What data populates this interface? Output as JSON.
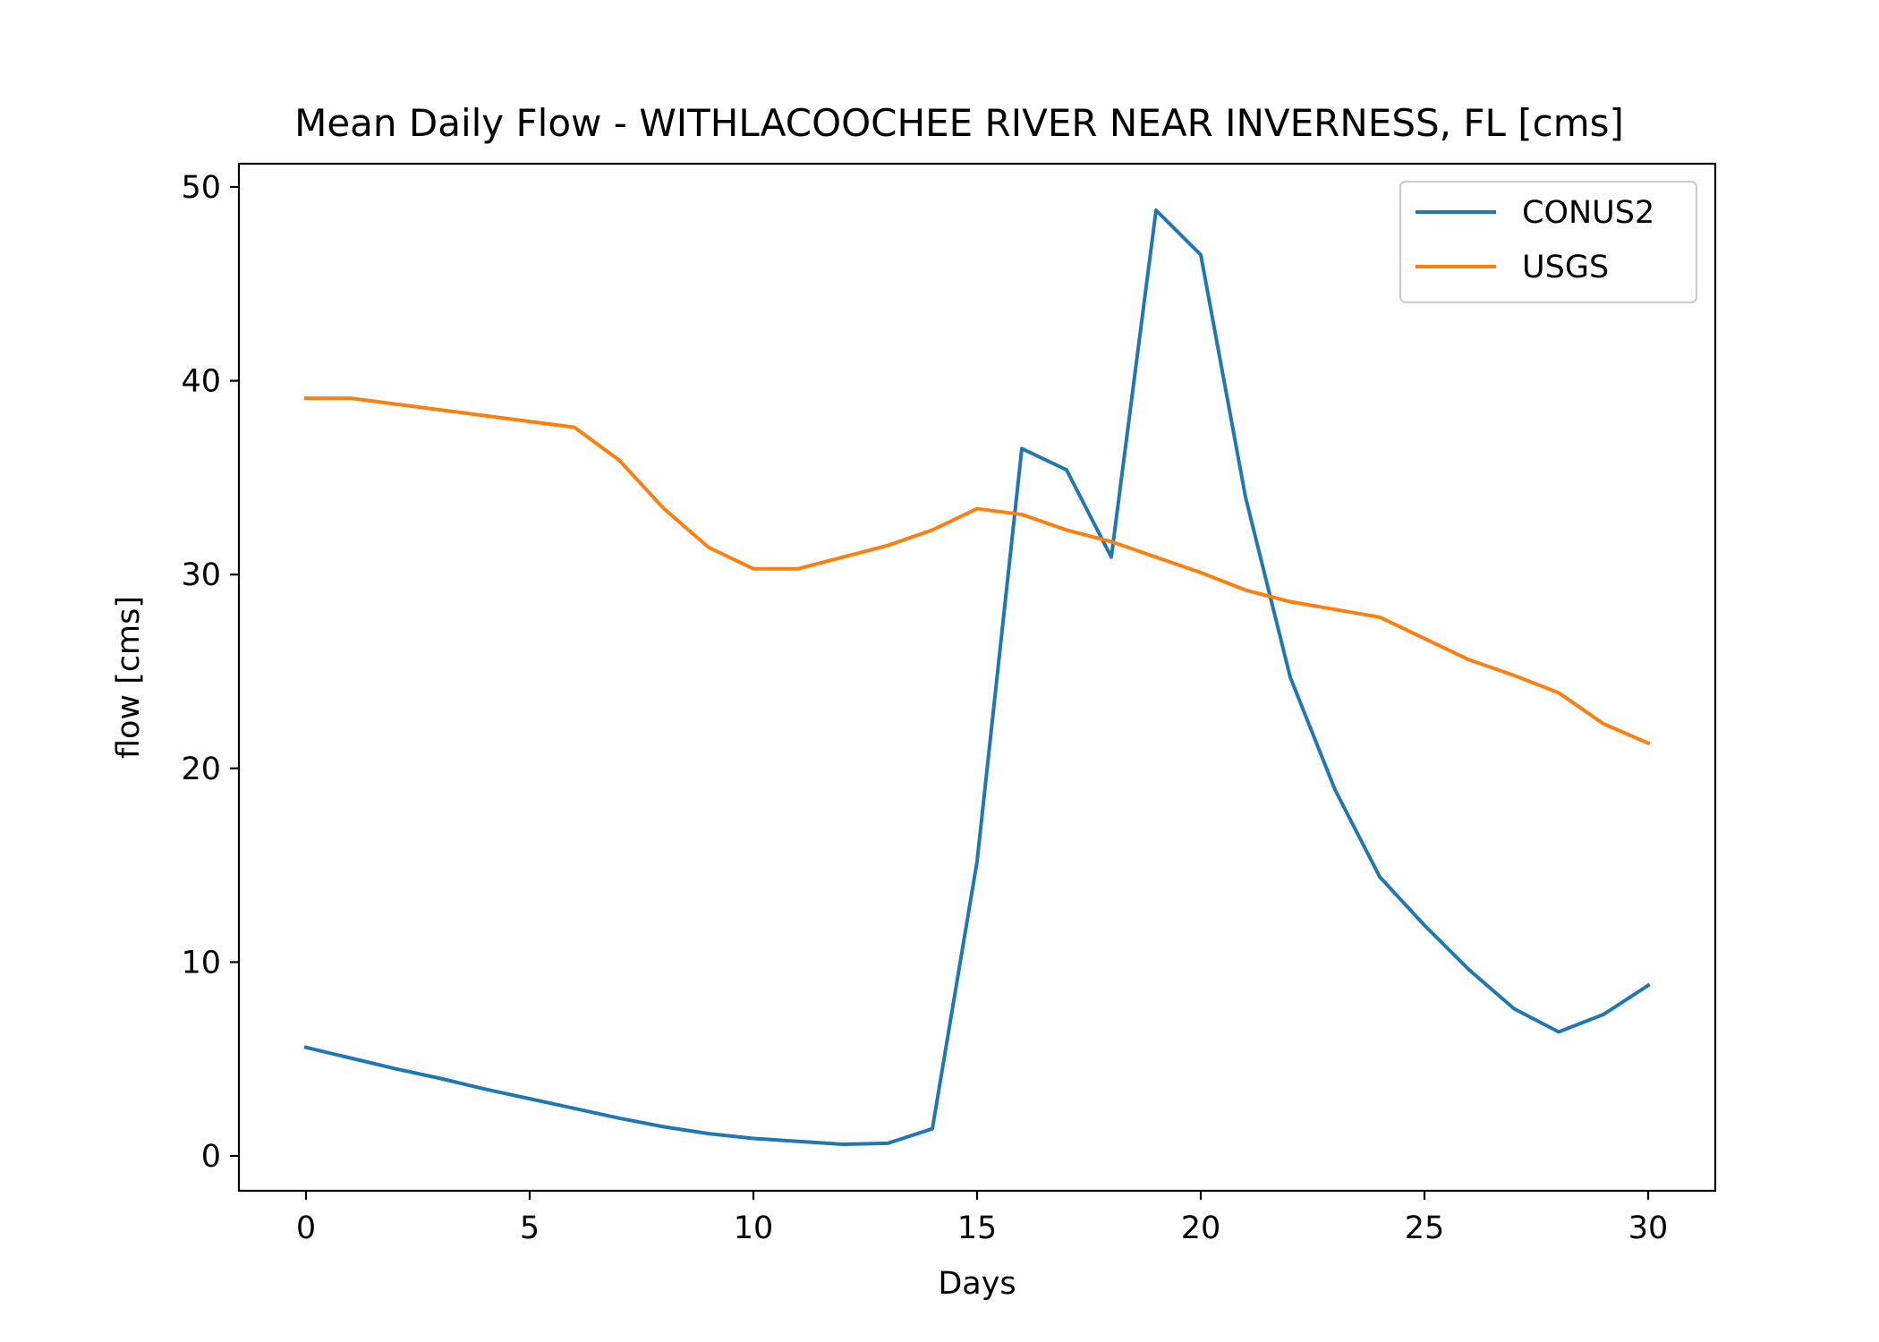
{
  "chart_data": {
    "type": "line",
    "title": "Mean Daily Flow - WITHLACOOCHEE RIVER NEAR INVERNESS, FL [cms]",
    "xlabel": "Days",
    "ylabel": "flow [cms]",
    "xlim": [
      -1.5,
      31.5
    ],
    "ylim": [
      -1.8,
      51.2
    ],
    "xticks": [
      0,
      5,
      10,
      15,
      20,
      25,
      30
    ],
    "yticks": [
      0,
      10,
      20,
      30,
      40,
      50
    ],
    "grid": false,
    "legend_position": "top-right",
    "x": [
      0,
      1,
      2,
      3,
      4,
      5,
      6,
      7,
      8,
      9,
      10,
      11,
      12,
      13,
      14,
      15,
      16,
      17,
      18,
      19,
      20,
      21,
      22,
      23,
      24,
      25,
      26,
      27,
      28,
      29,
      30
    ],
    "series": [
      {
        "name": "CONUS2",
        "color": "#1f77b4",
        "values": [
          5.6,
          5.05,
          4.5,
          4.0,
          3.45,
          2.95,
          2.45,
          1.95,
          1.5,
          1.15,
          0.9,
          0.75,
          0.6,
          0.65,
          1.4,
          15.2,
          36.5,
          35.4,
          30.9,
          48.8,
          46.5,
          34.0,
          24.7,
          18.9,
          14.4,
          11.9,
          9.6,
          7.6,
          6.4,
          7.3,
          8.8
        ]
      },
      {
        "name": "USGS",
        "color": "#ff7f0e",
        "values": [
          39.1,
          39.1,
          38.8,
          38.5,
          38.2,
          37.9,
          37.6,
          35.9,
          33.4,
          31.4,
          30.3,
          30.3,
          30.9,
          31.5,
          32.3,
          33.4,
          33.1,
          32.3,
          31.7,
          30.9,
          30.1,
          29.2,
          28.6,
          28.2,
          27.8,
          26.7,
          25.6,
          24.8,
          23.9,
          22.3,
          21.3
        ]
      }
    ]
  }
}
